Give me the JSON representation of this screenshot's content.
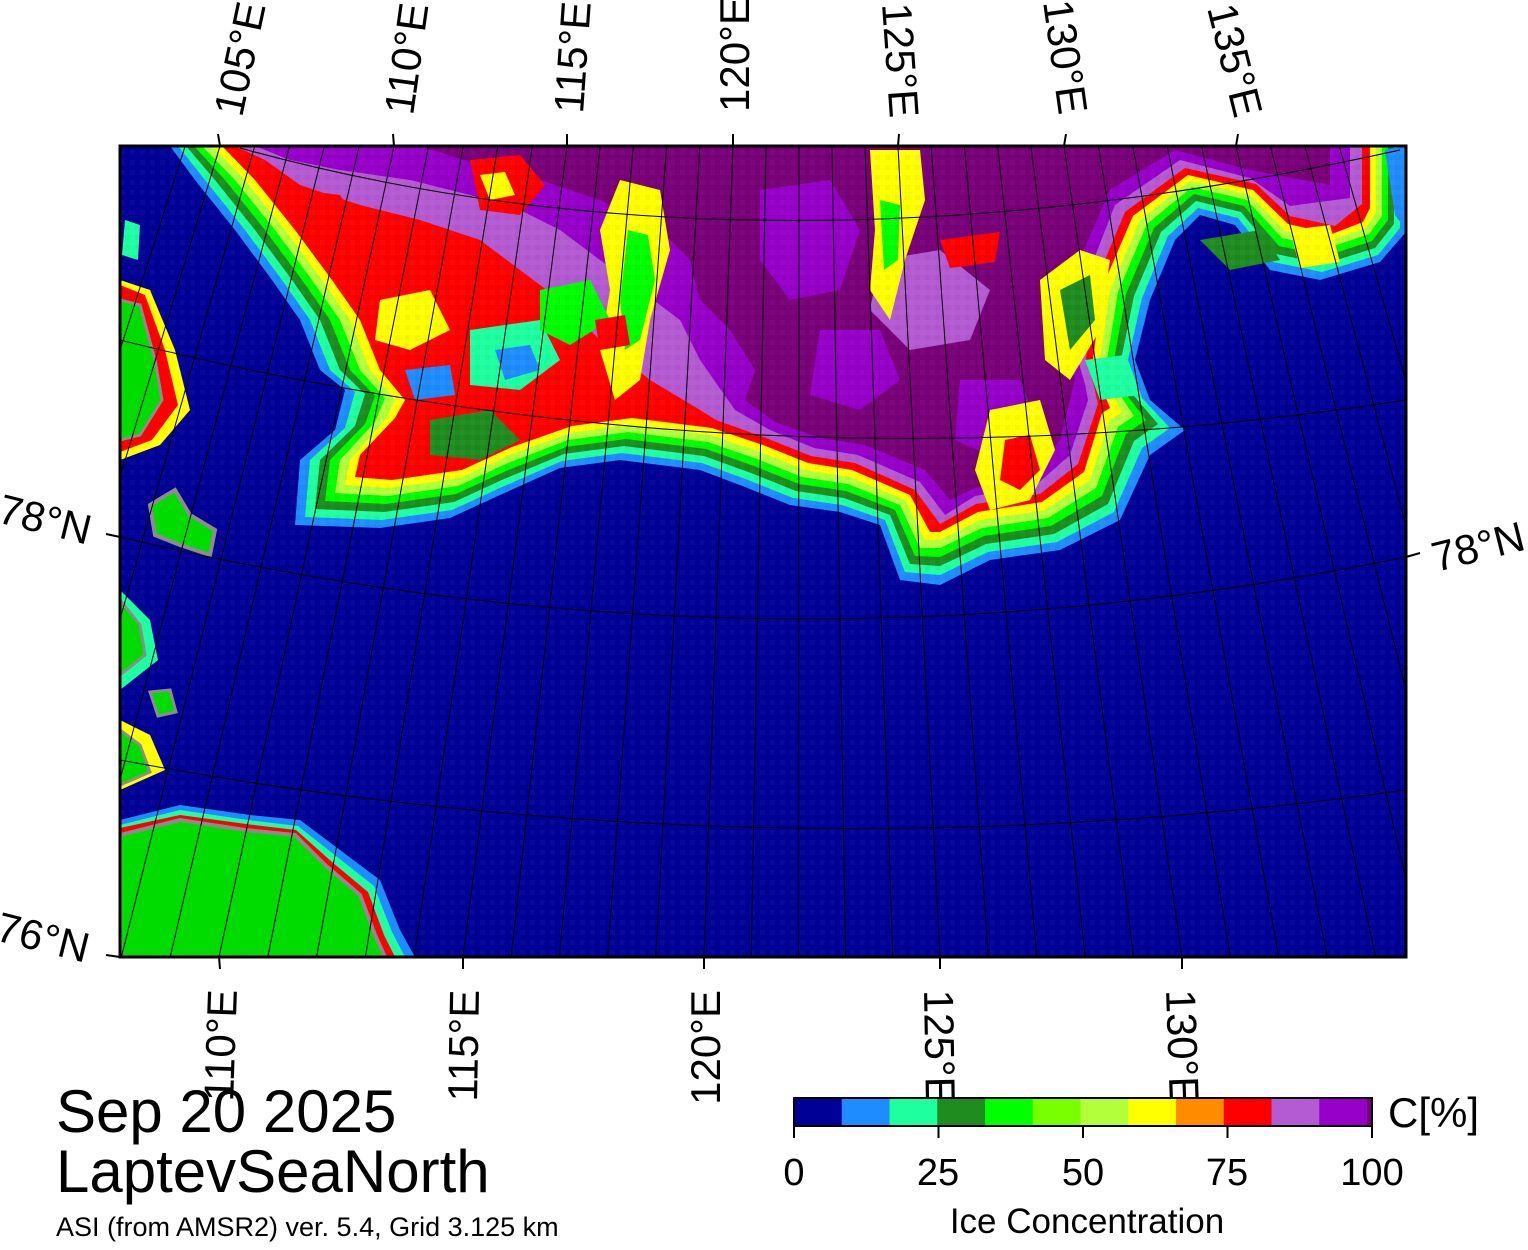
{
  "title": {
    "date": "Sep 20 2025",
    "region": "LaptevSeaNorth",
    "product": "ASI (from AMSR2) ver. 5.4,  Grid 3.125 km"
  },
  "map": {
    "projection": "polar stereographic",
    "lat_range": [
      76,
      79.5
    ],
    "lon_range": [
      104,
      138
    ],
    "top_lon_labels": [
      "105°E",
      "110°E",
      "115°E",
      "120°E",
      "125°E",
      "130°E",
      "135°E"
    ],
    "bottom_lon_labels": [
      "110°E",
      "115°E",
      "120°E",
      "125°E",
      "130°E"
    ],
    "left_lat_labels": [
      "78°N",
      "76°N"
    ],
    "right_lat_labels": [
      "78°N"
    ],
    "grid": true,
    "colors": {
      "open_water": "#000096",
      "land": "#00dc00",
      "coast_mask": "#8c8c8c",
      "frame": "#000000"
    }
  },
  "colorbar": {
    "unit_label": "C[%]",
    "axis_label": "Ice Concentration",
    "ticks": [
      "0",
      "25",
      "50",
      "75",
      "100"
    ],
    "range": [
      0,
      100
    ],
    "colors": [
      "#000096",
      "#1e8cff",
      "#1effa0",
      "#1e8c1e",
      "#00ff00",
      "#78ff00",
      "#b4ff3c",
      "#ffff00",
      "#ff8c00",
      "#ff0000",
      "#b45ad2",
      "#9600c8",
      "#780078"
    ]
  }
}
